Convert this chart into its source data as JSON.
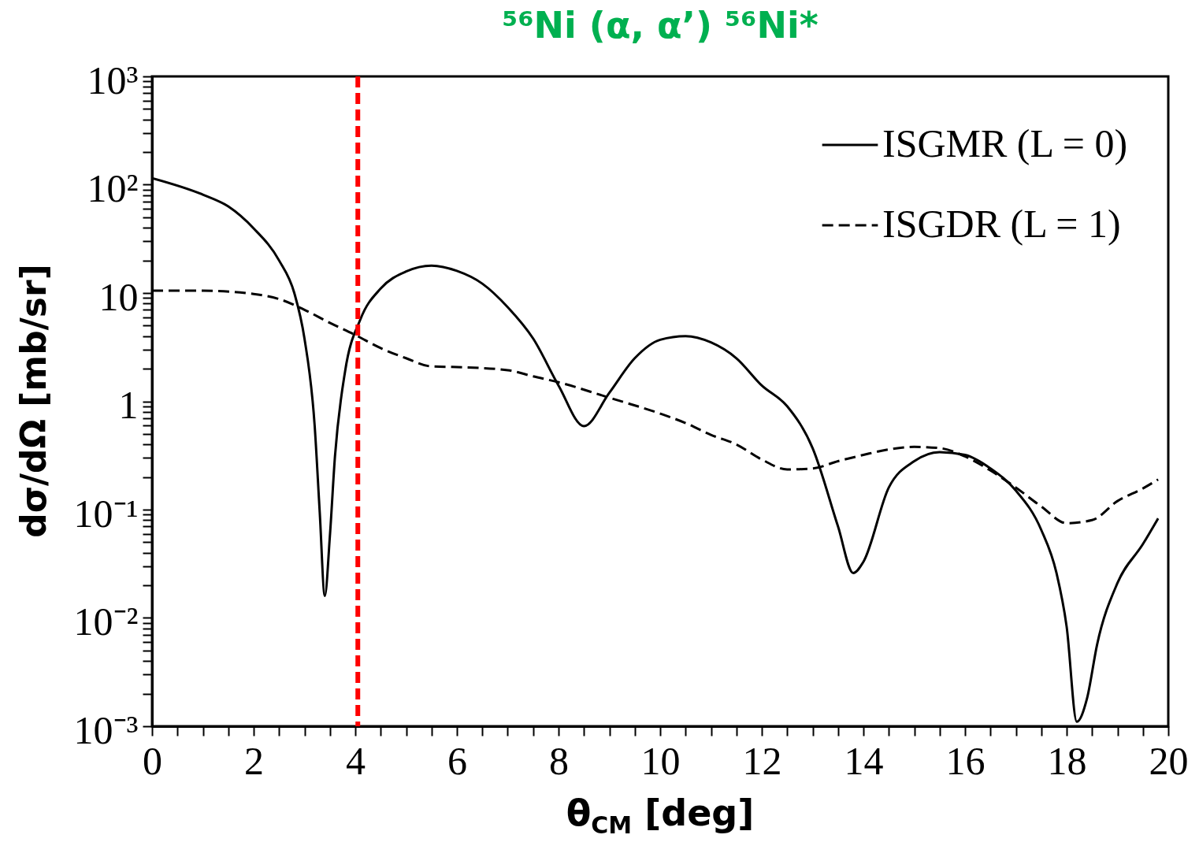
{
  "chart_data": {
    "type": "line",
    "title": "⁵⁶Ni (α, α’) ⁵⁶Ni*",
    "xlabel": "θ$_{CM}$ [deg]",
    "ylabel": "dσ/dΩ [mb/sr]",
    "log": "y",
    "grid": false,
    "legend": "top right",
    "xlim": [
      0,
      20
    ],
    "ylim": [
      0.001,
      1000
    ],
    "xticks": [
      0,
      {
        "value": 0.5,
        "label": null
      },
      {
        "value": 1,
        "label": null
      },
      {
        "value": 1.5,
        "label": null
      },
      2,
      {
        "value": 2.5,
        "label": null
      },
      {
        "value": 3,
        "label": null
      },
      {
        "value": 3.5,
        "label": null
      },
      4,
      {
        "value": 4.5,
        "label": null
      },
      {
        "value": 5,
        "label": null
      },
      {
        "value": 5.5,
        "label": null
      },
      6,
      {
        "value": 6.5,
        "label": null
      },
      {
        "value": 7,
        "label": null
      },
      {
        "value": 7.5,
        "label": null
      },
      8,
      {
        "value": 8.5,
        "label": null
      },
      {
        "value": 9,
        "label": null
      },
      {
        "value": 9.5,
        "label": null
      },
      10,
      {
        "value": 10.5,
        "label": null
      },
      {
        "value": 11,
        "label": null
      },
      {
        "value": 11.5,
        "label": null
      },
      12,
      {
        "value": 12.5,
        "label": null
      },
      {
        "value": 13,
        "label": null
      },
      {
        "value": 13.5,
        "label": null
      },
      14,
      {
        "value": 14.5,
        "label": null
      },
      {
        "value": 15,
        "label": null
      },
      {
        "value": 15.5,
        "label": null
      },
      16,
      {
        "value": 16.5,
        "label": null
      },
      {
        "value": 17,
        "label": null
      },
      {
        "value": 17.5,
        "label": null
      },
      18,
      {
        "value": 18.5,
        "label": null
      },
      {
        "value": 19,
        "label": null
      },
      {
        "value": 19.5,
        "label": null
      },
      20
    ],
    "yticks": [
      {
        "value": 0.001,
        "label": "10⁻³"
      },
      {
        "value": 0.002,
        "label": null
      },
      {
        "value": 0.003,
        "label": null
      },
      {
        "value": 0.004,
        "label": null
      },
      {
        "value": 0.005,
        "label": null
      },
      {
        "value": 0.006,
        "label": null
      },
      {
        "value": 0.007,
        "label": null
      },
      {
        "value": 0.008,
        "label": null
      },
      {
        "value": 0.009,
        "label": null
      },
      {
        "value": 0.01,
        "label": "10⁻²"
      },
      {
        "value": 0.02,
        "label": null
      },
      {
        "value": 0.03,
        "label": null
      },
      {
        "value": 0.04,
        "label": null
      },
      {
        "value": 0.05,
        "label": null
      },
      {
        "value": 0.06,
        "label": null
      },
      {
        "value": 0.07,
        "label": null
      },
      {
        "value": 0.08,
        "label": null
      },
      {
        "value": 0.09,
        "label": null
      },
      {
        "value": 0.1,
        "label": "10⁻¹"
      },
      {
        "value": 0.2,
        "label": null
      },
      {
        "value": 0.3,
        "label": null
      },
      {
        "value": 0.4,
        "label": null
      },
      {
        "value": 0.5,
        "label": null
      },
      {
        "value": 0.6,
        "label": null
      },
      {
        "value": 0.7,
        "label": null
      },
      {
        "value": 0.8,
        "label": null
      },
      {
        "value": 0.9,
        "label": null
      },
      1,
      {
        "value": 2,
        "label": null
      },
      {
        "value": 3,
        "label": null
      },
      {
        "value": 4,
        "label": null
      },
      {
        "value": 5,
        "label": null
      },
      {
        "value": 6,
        "label": null
      },
      {
        "value": 7,
        "label": null
      },
      {
        "value": 8,
        "label": null
      },
      {
        "value": 9,
        "label": null
      },
      10,
      {
        "value": 20,
        "label": null
      },
      {
        "value": 30,
        "label": null
      },
      {
        "value": 40,
        "label": null
      },
      {
        "value": 50,
        "label": null
      },
      {
        "value": 60,
        "label": null
      },
      {
        "value": 70,
        "label": null
      },
      {
        "value": 80,
        "label": null
      },
      {
        "value": 90,
        "label": null
      },
      {
        "value": 100,
        "label": "10²"
      },
      {
        "value": 200,
        "label": null
      },
      {
        "value": 300,
        "label": null
      },
      {
        "value": 400,
        "label": null
      },
      {
        "value": 500,
        "label": null
      },
      {
        "value": 600,
        "label": null
      },
      {
        "value": 700,
        "label": null
      },
      {
        "value": 800,
        "label": null
      },
      {
        "value": 900,
        "label": null
      },
      {
        "value": 1000,
        "label": "10³"
      }
    ],
    "series": [
      {
        "name": "ISGMR (L = 0)",
        "color": "#000000",
        "line_style": "solid",
        "x": [
          0,
          1,
          1.5,
          2,
          2.5,
          2.8,
          3,
          3.2,
          3.3,
          3.4,
          3.5,
          3.6,
          3.8,
          4.1,
          4.5,
          5,
          5.5,
          6,
          6.5,
          7,
          7.5,
          8,
          8.5,
          9,
          9.5,
          10,
          10.5,
          11,
          11.5,
          12,
          12.5,
          13,
          13.5,
          13.8,
          14,
          14.5,
          15,
          15.5,
          16,
          16.5,
          17,
          17.5,
          17.8,
          18,
          18.2,
          18.4,
          18.6,
          19,
          19.5,
          19.8
        ],
        "values": [
          115,
          81,
          63,
          39.5,
          20,
          10,
          3.8,
          0.6,
          0.095,
          0.016,
          0.057,
          0.31,
          1.9,
          5.7,
          11,
          15.8,
          17.9,
          16,
          12.2,
          7.4,
          3.8,
          1.4,
          0.59,
          1.2,
          2.5,
          3.7,
          4,
          3.5,
          2.5,
          1.4,
          0.9,
          0.37,
          0.07,
          0.026,
          0.033,
          0.16,
          0.28,
          0.34,
          0.32,
          0.24,
          0.15,
          0.065,
          0.026,
          0.0083,
          0.0011,
          0.0018,
          0.0057,
          0.021,
          0.048,
          0.083
        ]
      },
      {
        "name": "ISGDR (L = 1)",
        "color": "#000000",
        "line_style": "dashed",
        "x": [
          0,
          1,
          2,
          2.5,
          3,
          3.5,
          4,
          4.5,
          5,
          5.5,
          6,
          7,
          7.5,
          8,
          9,
          10,
          10.5,
          11,
          11.5,
          12,
          12.5,
          13,
          13.5,
          14,
          14.5,
          15,
          15.5,
          16,
          16.5,
          17,
          17.5,
          18,
          18.5,
          19,
          19.5,
          19.8
        ],
        "values": [
          10.5,
          10.5,
          9.8,
          8.8,
          7,
          5.3,
          4.1,
          3.1,
          2.5,
          2.1,
          2.07,
          1.94,
          1.7,
          1.5,
          1.08,
          0.77,
          0.63,
          0.49,
          0.4,
          0.29,
          0.235,
          0.24,
          0.28,
          0.32,
          0.36,
          0.38,
          0.37,
          0.31,
          0.23,
          0.16,
          0.107,
          0.075,
          0.08,
          0.12,
          0.157,
          0.19
        ]
      }
    ],
    "ref_lines": [
      {
        "axis": "x",
        "value": 4.05,
        "color": "#ff0000",
        "line_style": "dashed"
      }
    ]
  }
}
